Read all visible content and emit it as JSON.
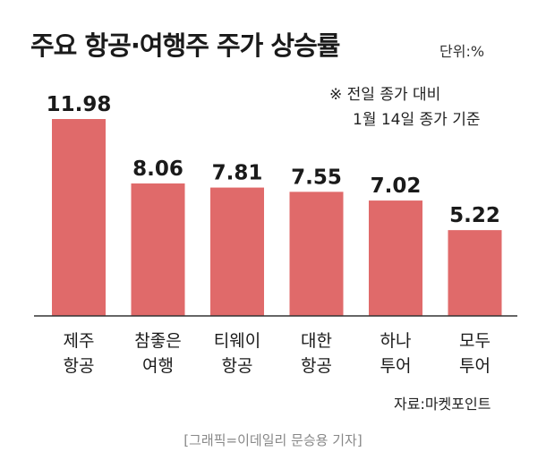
{
  "chart_data": {
    "type": "bar",
    "title": "주요 항공·여행주 주가 상승률",
    "unit": "단위:%",
    "note": [
      "※ 전일 종가 대비",
      "1월 14일 종가 기준"
    ],
    "source": "자료:마켓포인트",
    "categories": [
      [
        "제주",
        "항공"
      ],
      [
        "참좋은",
        "여행"
      ],
      [
        "티웨이",
        "항공"
      ],
      [
        "대한",
        "항공"
      ],
      [
        "하나",
        "투어"
      ],
      [
        "모두",
        "투어"
      ]
    ],
    "values": [
      11.98,
      8.06,
      7.81,
      7.55,
      7.02,
      5.22
    ],
    "value_labels": [
      "11.98",
      "8.06",
      "7.81",
      "7.55",
      "7.02",
      "5.22"
    ],
    "ylim": [
      0,
      12
    ],
    "bar_color": "#e06a6a",
    "legend": "none",
    "grid": false
  },
  "credit": "[그래픽=이데일리 문승용 기자]"
}
